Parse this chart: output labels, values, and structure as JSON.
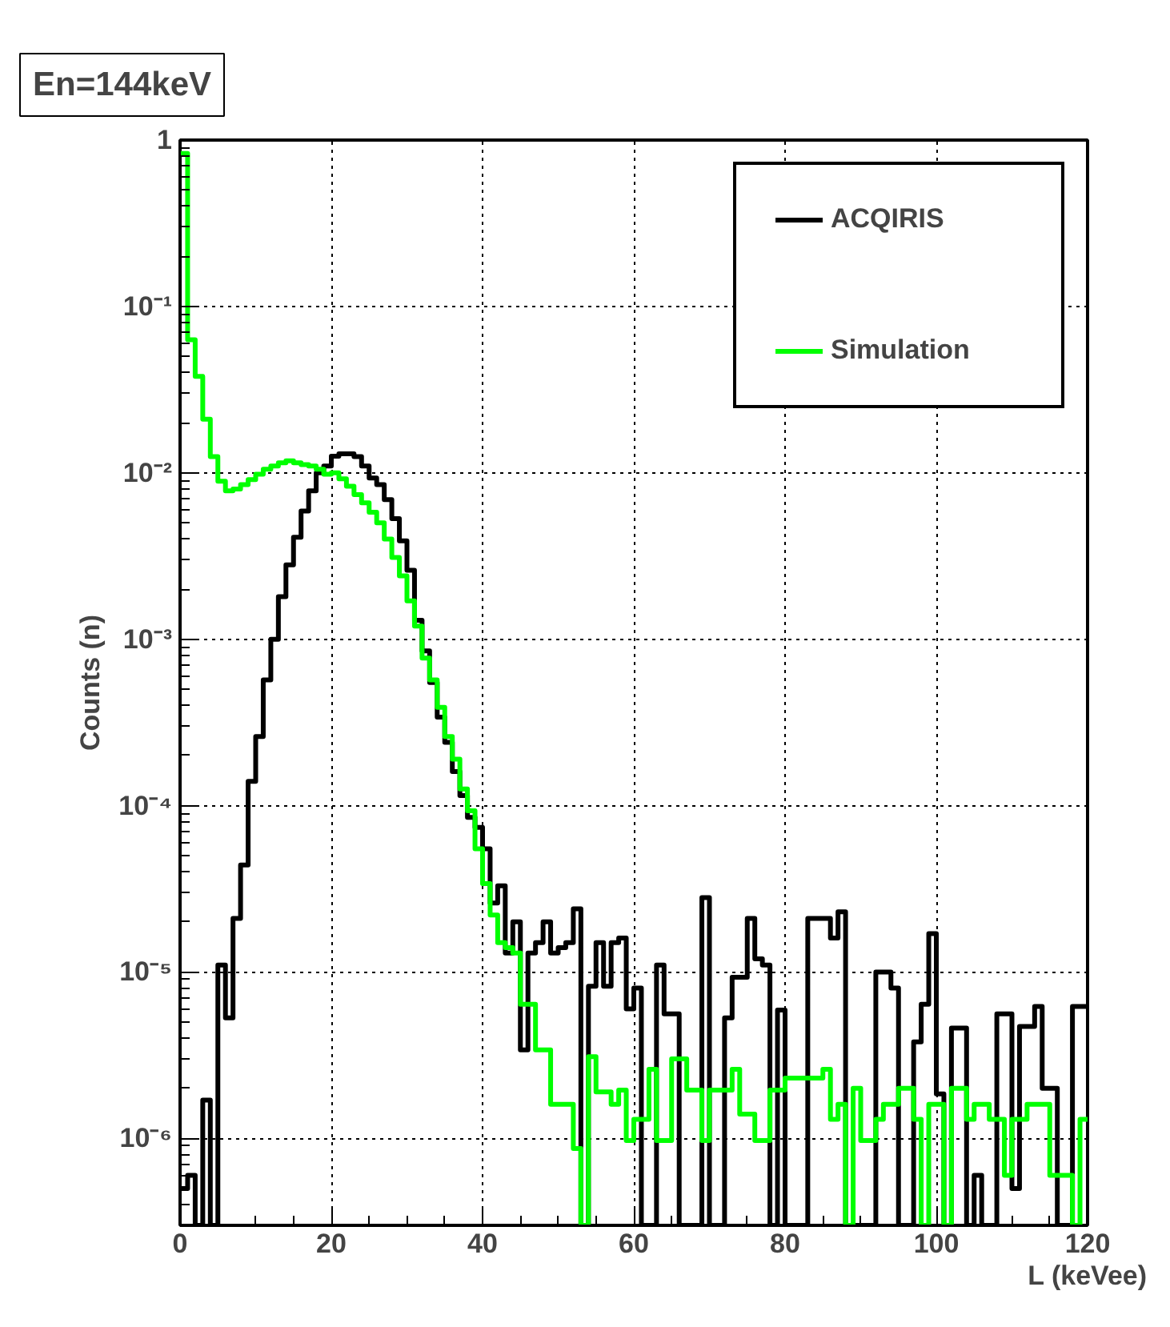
{
  "chart_data": {
    "type": "histogram",
    "title": "En=144keV",
    "xlabel": "L (keVee)",
    "ylabel": "Counts (n)",
    "bins": [
      0,
      1,
      2,
      3,
      4,
      5,
      6,
      7,
      8,
      9,
      10,
      11,
      12,
      13,
      14,
      15,
      16,
      17,
      18,
      19,
      20,
      21,
      22,
      23,
      24,
      25,
      26,
      27,
      28,
      29,
      30,
      31,
      32,
      33,
      34,
      35,
      36,
      37,
      38,
      39,
      40,
      41,
      42,
      43,
      44,
      45,
      46,
      47,
      48,
      49,
      50,
      51,
      52,
      53,
      54,
      55,
      56,
      57,
      58,
      59,
      60,
      61,
      62,
      63,
      64,
      65,
      66,
      67,
      68,
      69,
      70,
      71,
      72,
      73,
      74,
      75,
      76,
      77,
      78,
      79,
      80,
      81,
      82,
      83,
      84,
      85,
      86,
      87,
      88,
      89,
      90,
      91,
      92,
      93,
      94,
      95,
      96,
      97,
      98,
      99,
      100,
      101,
      102,
      103,
      104,
      105,
      106,
      107,
      108,
      109,
      110,
      111,
      112,
      113,
      114,
      115,
      116,
      117,
      118,
      119,
      120
    ],
    "series": [
      {
        "name": "ACQIRIS",
        "color": "#000000",
        "values": [
          5e-07,
          6e-07,
          null,
          1.7e-06,
          null,
          1.1e-05,
          5.3e-06,
          2.1e-05,
          4.4e-05,
          0.00014,
          0.00026,
          0.00057,
          0.001,
          0.0018,
          0.0028,
          0.0041,
          0.0059,
          0.0078,
          0.01,
          0.011,
          0.0126,
          0.013,
          0.013,
          0.0125,
          0.011,
          0.0093,
          0.0085,
          0.0069,
          0.0053,
          0.0039,
          0.0026,
          0.0013,
          0.00085,
          0.00055,
          0.00034,
          0.00024,
          0.00016,
          0.000115,
          8.5e-05,
          7.4e-05,
          5.5e-05,
          2.6e-05,
          3.3e-05,
          1.3e-05,
          2e-05,
          3.4e-06,
          1.3e-05,
          1.5e-05,
          2e-05,
          1.3e-05,
          1.4e-05,
          1.5e-05,
          2.4e-05,
          null,
          8.2e-06,
          1.5e-05,
          8.2e-06,
          1.5e-05,
          1.6e-05,
          6e-06,
          8e-06,
          null,
          null,
          1.1e-05,
          5.6e-06,
          5.6e-06,
          null,
          null,
          null,
          2.8e-05,
          null,
          null,
          5.3e-06,
          9.3e-06,
          9.3e-06,
          2.1e-05,
          1.2e-05,
          1.1e-05,
          null,
          5.9e-06,
          null,
          null,
          null,
          2.1e-05,
          2.1e-05,
          2.1e-05,
          1.6e-05,
          2.3e-05,
          null,
          null,
          null,
          null,
          1e-05,
          1e-05,
          8e-06,
          null,
          null,
          3.8e-06,
          6.4e-06,
          1.7e-05,
          1.85e-06,
          null,
          4.6e-06,
          4.6e-06,
          null,
          6e-07,
          null,
          null,
          5.6e-06,
          5.6e-06,
          5e-07,
          4.7e-06,
          4.7e-06,
          6.2e-06,
          2e-06,
          2e-06,
          null,
          null,
          6.2e-06,
          6.2e-06
        ]
      },
      {
        "name": "Simulation",
        "color": "#00ff00",
        "values": [
          0.83,
          0.063,
          0.038,
          0.021,
          0.0125,
          0.0089,
          0.0078,
          0.008,
          0.0085,
          0.0091,
          0.0098,
          0.0105,
          0.011,
          0.0115,
          0.0118,
          0.0115,
          0.0112,
          0.011,
          0.0105,
          0.0098,
          0.01,
          0.0092,
          0.0083,
          0.0074,
          0.0066,
          0.0058,
          0.005,
          0.004,
          0.0031,
          0.0024,
          0.0017,
          0.0012,
          0.00077,
          0.00057,
          0.00039,
          0.00026,
          0.00019,
          0.000126,
          9.3e-05,
          5.5e-05,
          3.4e-05,
          2.2e-05,
          1.5e-05,
          1.4e-05,
          1.3e-05,
          6.4e-06,
          6.4e-06,
          3.4e-06,
          3.4e-06,
          1.6e-06,
          1.6e-06,
          1.6e-06,
          8.7e-07,
          null,
          3.1e-06,
          1.9e-06,
          1.9e-06,
          1.6e-06,
          1.95e-06,
          9.7e-07,
          1.3e-06,
          1.3e-06,
          2.6e-06,
          9.7e-07,
          9.7e-07,
          3e-06,
          3e-06,
          1.95e-06,
          1.95e-06,
          9.7e-07,
          1.95e-06,
          1.95e-06,
          1.95e-06,
          2.6e-06,
          1.4e-06,
          1.4e-06,
          9.7e-07,
          9.7e-07,
          1.95e-06,
          1.95e-06,
          2.3e-06,
          2.3e-06,
          2.3e-06,
          2.3e-06,
          2.3e-06,
          2.6e-06,
          1.3e-06,
          1.6e-06,
          null,
          2e-06,
          9.7e-07,
          9.7e-07,
          1.3e-06,
          1.6e-06,
          1.6e-06,
          2e-06,
          2e-06,
          1.3e-06,
          null,
          1.6e-06,
          1.6e-06,
          null,
          2e-06,
          2e-06,
          1.3e-06,
          1.6e-06,
          1.6e-06,
          1.3e-06,
          1.3e-06,
          6e-07,
          1.3e-06,
          1.3e-06,
          1.6e-06,
          1.6e-06,
          1.6e-06,
          6e-07,
          6e-07,
          6e-07,
          null,
          1.3e-06
        ]
      }
    ],
    "xlim": [
      0,
      120
    ],
    "xticks": [
      0,
      20,
      40,
      60,
      80,
      100,
      120
    ],
    "ylim": [
      3e-07,
      1
    ],
    "log": true,
    "yticks": [
      {
        "value": 1e-06,
        "label": "10⁻⁶"
      },
      {
        "value": 1e-05,
        "label": "10⁻⁵"
      },
      {
        "value": 0.0001,
        "label": "10⁻⁴"
      },
      {
        "value": 0.001,
        "label": "10⁻³"
      },
      {
        "value": 0.01,
        "label": "10⁻²"
      },
      {
        "value": 0.1,
        "label": "10⁻¹"
      },
      1
    ],
    "grid": true,
    "legend": "top right"
  }
}
